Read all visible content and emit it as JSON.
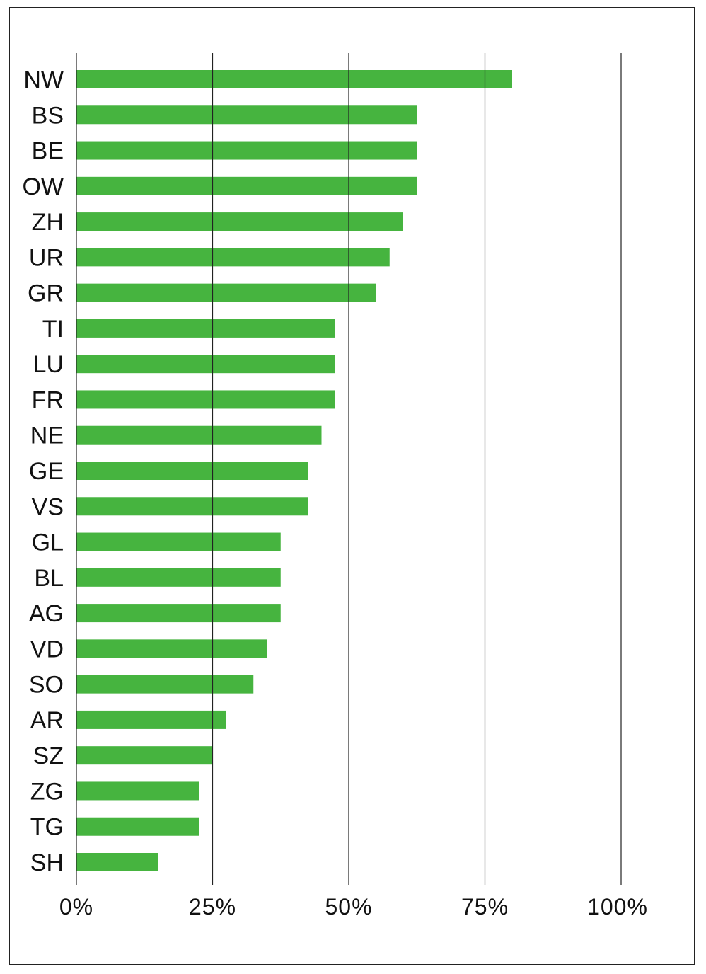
{
  "chart_data": {
    "type": "bar",
    "orientation": "horizontal",
    "categories": [
      "NW",
      "BS",
      "BE",
      "OW",
      "ZH",
      "UR",
      "GR",
      "TI",
      "LU",
      "FR",
      "NE",
      "GE",
      "VS",
      "GL",
      "BL",
      "AG",
      "VD",
      "SO",
      "AR",
      "SZ",
      "ZG",
      "TG",
      "SH"
    ],
    "values": [
      80,
      62.5,
      62.5,
      62.5,
      60,
      57.5,
      55,
      47.5,
      47.5,
      47.5,
      45,
      42.5,
      42.5,
      37.5,
      37.5,
      37.5,
      35,
      32.5,
      27.5,
      25,
      22.5,
      22.5,
      15
    ],
    "xlim": [
      0,
      100
    ],
    "xticks": [
      0,
      25,
      50,
      75,
      100
    ],
    "xtick_labels": [
      "0%",
      "25%",
      "50%",
      "75%",
      "100%"
    ],
    "title": "",
    "xlabel": "",
    "ylabel": "",
    "grid": "vertical",
    "bar_color": "#46b43f",
    "grid_color": "#222222"
  }
}
